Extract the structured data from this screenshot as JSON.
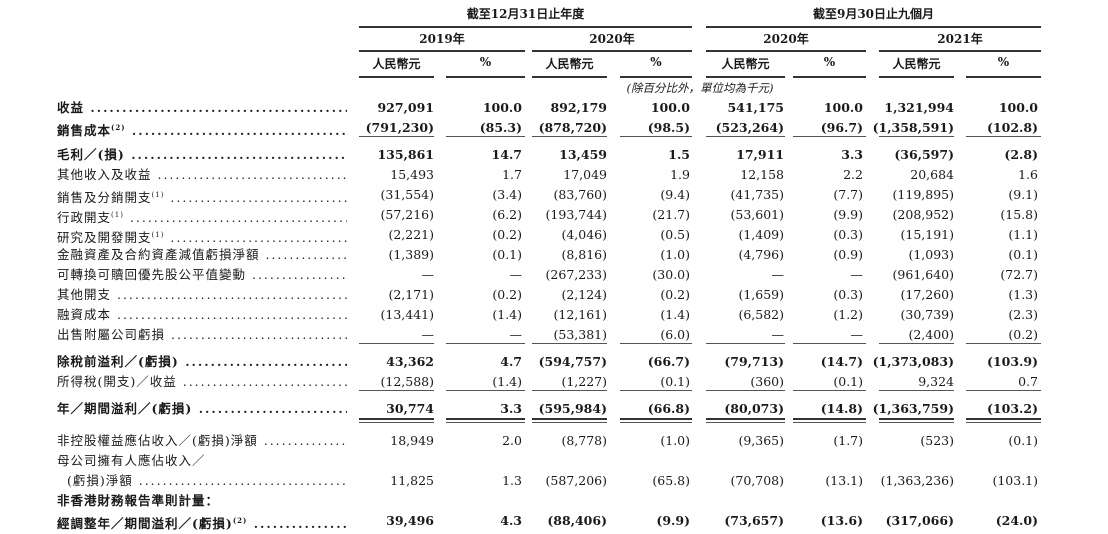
{
  "header": {
    "period_groups": [
      "截至12月31日止年度",
      "截至9月30日止九個月"
    ],
    "years": [
      "2019年",
      "2020年",
      "2020年",
      "2021年"
    ],
    "unit_labels": [
      "人民幣元",
      "%",
      "人民幣元",
      "%",
      "人民幣元",
      "%",
      "人民幣元",
      "%"
    ],
    "note": "(除百分比外，單位均為千元)"
  },
  "rows": [
    {
      "label": "收益",
      "bold": true,
      "dots": true,
      "values": [
        "927,091",
        "100.0",
        "892,179",
        "100.0",
        "541,175",
        "100.0",
        "1,321,994",
        "100.0"
      ]
    },
    {
      "label": "銷售成本",
      "sup": "(2)",
      "bold": true,
      "dots": true,
      "values": [
        "(791,230)",
        "(85.3)",
        "(878,720)",
        "(98.5)",
        "(523,264)",
        "(96.7)",
        "(1,358,591)",
        "(102.8)"
      ],
      "rule_after": "single"
    },
    {
      "label": "毛利／(損)",
      "bold": true,
      "dots": true,
      "values": [
        "135,861",
        "14.7",
        "13,459",
        "1.5",
        "17,911",
        "3.3",
        "(36,597)",
        "(2.8)"
      ]
    },
    {
      "label": "其他收入及收益",
      "dots": true,
      "values": [
        "15,493",
        "1.7",
        "17,049",
        "1.9",
        "12,158",
        "2.2",
        "20,684",
        "1.6"
      ]
    },
    {
      "label": "銷售及分銷開支",
      "sup": "(1)",
      "dots": true,
      "values": [
        "(31,554)",
        "(3.4)",
        "(83,760)",
        "(9.4)",
        "(41,735)",
        "(7.7)",
        "(119,895)",
        "(9.1)"
      ]
    },
    {
      "label": "行政開支",
      "sup": "(1)",
      "dots": true,
      "values": [
        "(57,216)",
        "(6.2)",
        "(193,744)",
        "(21.7)",
        "(53,601)",
        "(9.9)",
        "(208,952)",
        "(15.8)"
      ]
    },
    {
      "label": "研究及開發開支",
      "sup": "(1)",
      "dots": true,
      "values": [
        "(2,221)",
        "(0.2)",
        "(4,046)",
        "(0.5)",
        "(1,409)",
        "(0.3)",
        "(15,191)",
        "(1.1)"
      ]
    },
    {
      "label": "金融資產及合約資產減值虧損淨額",
      "dots": true,
      "values": [
        "(1,389)",
        "(0.1)",
        "(8,816)",
        "(1.0)",
        "(4,796)",
        "(0.9)",
        "(1,093)",
        "(0.1)"
      ]
    },
    {
      "label": "可轉換可贖回優先股公平值變動",
      "dots": true,
      "values": [
        "—",
        "—",
        "(267,233)",
        "(30.0)",
        "—",
        "—",
        "(961,640)",
        "(72.7)"
      ]
    },
    {
      "label": "其他開支",
      "dots": true,
      "values": [
        "(2,171)",
        "(0.2)",
        "(2,124)",
        "(0.2)",
        "(1,659)",
        "(0.3)",
        "(17,260)",
        "(1.3)"
      ]
    },
    {
      "label": "融資成本",
      "dots": true,
      "values": [
        "(13,441)",
        "(1.4)",
        "(12,161)",
        "(1.4)",
        "(6,582)",
        "(1.2)",
        "(30,739)",
        "(2.3)"
      ]
    },
    {
      "label": "出售附屬公司虧損",
      "dots": true,
      "values": [
        "—",
        "—",
        "(53,381)",
        "(6.0)",
        "—",
        "—",
        "(2,400)",
        "(0.2)"
      ],
      "rule_after": "single"
    },
    {
      "label": "除稅前溢利／(虧損)",
      "bold": true,
      "dots": true,
      "values": [
        "43,362",
        "4.7",
        "(594,757)",
        "(66.7)",
        "(79,713)",
        "(14.7)",
        "(1,373,083)",
        "(103.9)"
      ]
    },
    {
      "label": "所得稅(開支)／收益",
      "dots": true,
      "values": [
        "(12,588)",
        "(1.4)",
        "(1,227)",
        "(0.1)",
        "(360)",
        "(0.1)",
        "9,324",
        "0.7"
      ],
      "rule_after": "single"
    },
    {
      "label": "年／期間溢利／(虧損)",
      "bold": true,
      "dots": true,
      "values": [
        "30,774",
        "3.3",
        "(595,984)",
        "(66.8)",
        "(80,073)",
        "(14.8)",
        "(1,363,759)",
        "(103.2)"
      ],
      "rule_after": "double"
    },
    {
      "label": "非控股權益應佔收入／(虧損)淨額",
      "dots": true,
      "values": [
        "18,949",
        "2.0",
        "(8,778)",
        "(1.0)",
        "(9,365)",
        "(1.7)",
        "(523)",
        "(0.1)"
      ]
    },
    {
      "label": "母公司擁有人應佔收入／",
      "values": []
    },
    {
      "label": "(虧損)淨額",
      "indent": true,
      "dots": true,
      "values": [
        "11,825",
        "1.3",
        "(587,206)",
        "(65.8)",
        "(70,708)",
        "(13.1)",
        "(1,363,236)",
        "(103.1)"
      ]
    },
    {
      "label": "非香港財務報告準則計量：",
      "bold": true,
      "values": []
    },
    {
      "label": "經調整年／期間溢利／(虧損)",
      "sup": "(2)",
      "bold": true,
      "dots": true,
      "values": [
        "39,496",
        "4.3",
        "(88,406)",
        "(9.9)",
        "(73,657)",
        "(13.6)",
        "(317,066)",
        "(24.0)"
      ]
    }
  ]
}
